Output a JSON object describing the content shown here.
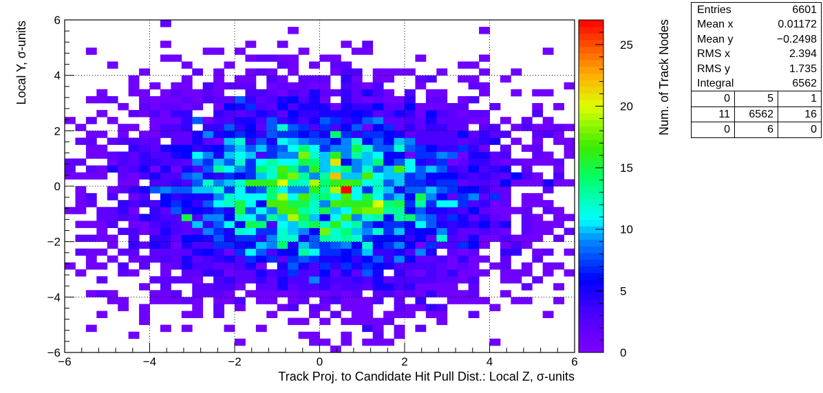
{
  "chart_data": {
    "type": "heatmap",
    "title": "",
    "xlabel": "Track Proj. to Candidate Hit Pull Dist.: Local Z, σ-units",
    "ylabel": "Local Y, σ-units",
    "zlabel": "Num. of Track Nodes",
    "xlim": [
      -6,
      6
    ],
    "ylim": [
      -6,
      6
    ],
    "zlim": [
      0,
      27
    ],
    "bins_x": 48,
    "bins_y": 48,
    "x_ticks": [
      -6,
      -4,
      -2,
      0,
      2,
      4,
      6
    ],
    "y_ticks": [
      -6,
      -4,
      -2,
      0,
      2,
      4,
      6
    ],
    "z_ticks": [
      0,
      5,
      10,
      15,
      20,
      25
    ],
    "grid": true,
    "colormap": "rainbow",
    "peak": {
      "x": 0.625,
      "y": -0.125,
      "count": 27
    },
    "distribution_model": {
      "mean_x": 0.01172,
      "mean_y": -0.2498,
      "rms_x": 2.394,
      "rms_y": 1.735,
      "entries": 6601,
      "integral": 6562
    }
  },
  "stats_box": {
    "entries_label": "Entries",
    "entries": "6601",
    "mean_x_label": "Mean x",
    "mean_x": "0.01172",
    "mean_y_label": "Mean y",
    "mean_y": "−0.2498",
    "rms_x_label": "RMS x",
    "rms_x": "2.394",
    "rms_y_label": "RMS y",
    "rms_y": "1.735",
    "integral_label": "Integral",
    "integral": "6562",
    "overflow": [
      [
        "0",
        "5",
        "1"
      ],
      [
        "11",
        "6562",
        "16"
      ],
      [
        "0",
        "6",
        "0"
      ]
    ]
  },
  "colors": {
    "frame": "#000000",
    "grid": "#000000"
  }
}
